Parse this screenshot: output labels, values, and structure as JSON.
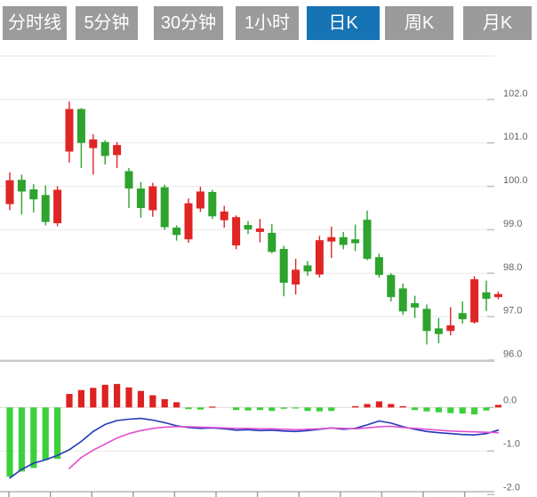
{
  "tabs": {
    "items": [
      {
        "label": "分时线",
        "active": false
      },
      {
        "label": "5分钟",
        "active": false
      },
      {
        "label": "30分钟",
        "active": false
      },
      {
        "label": "1小时",
        "active": false
      },
      {
        "label": "日K",
        "active": true
      },
      {
        "label": "周K",
        "active": false
      },
      {
        "label": "月K",
        "active": false
      }
    ],
    "active_color": "#1673b4",
    "inactive_color": "#9b9b9b",
    "text_color": "#ffffff"
  },
  "chart_data": {
    "type": "candlestick",
    "title": "",
    "legend_position": "none",
    "grid": true,
    "main_panel": {
      "ylabel": "",
      "ylim": [
        96.0,
        103.0
      ],
      "ytick_labels": [
        "102.0",
        "101.0",
        "100.0",
        "99.0",
        "98.0",
        "97.0",
        "96.0"
      ],
      "ytick_values": [
        102.0,
        101.0,
        100.0,
        99.0,
        98.0,
        97.0,
        96.0
      ],
      "up_color": "#e02525",
      "down_color": "#2ea32e",
      "ohlc_order": [
        "open",
        "high",
        "low",
        "close"
      ],
      "candles": [
        [
          99.59,
          100.32,
          99.45,
          100.14
        ],
        [
          100.15,
          100.27,
          99.35,
          99.88
        ],
        [
          99.93,
          100.05,
          99.4,
          99.7
        ],
        [
          99.8,
          100.02,
          99.1,
          99.18
        ],
        [
          99.15,
          100.0,
          99.08,
          99.92
        ],
        [
          100.8,
          101.95,
          100.55,
          101.78
        ],
        [
          101.78,
          101.8,
          100.42,
          101.0
        ],
        [
          100.88,
          101.2,
          100.27,
          101.08
        ],
        [
          101.02,
          101.06,
          100.5,
          100.7
        ],
        [
          100.72,
          101.02,
          100.42,
          100.95
        ],
        [
          100.35,
          100.42,
          99.5,
          99.95
        ],
        [
          99.95,
          100.1,
          99.28,
          99.5
        ],
        [
          99.45,
          100.08,
          99.3,
          100.0
        ],
        [
          99.98,
          100.04,
          99.0,
          99.06
        ],
        [
          99.05,
          99.1,
          98.75,
          98.88
        ],
        [
          98.78,
          99.72,
          98.7,
          99.61
        ],
        [
          99.49,
          99.99,
          99.41,
          99.88
        ],
        [
          99.87,
          99.92,
          99.25,
          99.31
        ],
        [
          99.22,
          99.55,
          99.05,
          99.42
        ],
        [
          98.64,
          99.33,
          98.55,
          99.29
        ],
        [
          99.11,
          99.2,
          98.9,
          99.01
        ],
        [
          98.95,
          99.25,
          98.71,
          99.03
        ],
        [
          98.93,
          99.13,
          98.46,
          98.49
        ],
        [
          98.56,
          98.63,
          97.47,
          97.78
        ],
        [
          97.74,
          98.33,
          97.51,
          98.08
        ],
        [
          98.18,
          98.28,
          97.94,
          98.04
        ],
        [
          97.97,
          98.86,
          97.9,
          98.76
        ],
        [
          98.73,
          99.07,
          98.35,
          98.83
        ],
        [
          98.83,
          98.95,
          98.55,
          98.65
        ],
        [
          98.78,
          99.12,
          98.51,
          98.69
        ],
        [
          99.23,
          99.44,
          98.3,
          98.33
        ],
        [
          98.37,
          98.45,
          97.9,
          97.96
        ],
        [
          97.96,
          98.0,
          97.35,
          97.45
        ],
        [
          97.65,
          97.76,
          97.04,
          97.12
        ],
        [
          97.31,
          97.48,
          96.97,
          97.21
        ],
        [
          97.18,
          97.28,
          96.36,
          96.67
        ],
        [
          96.73,
          96.97,
          96.39,
          96.6
        ],
        [
          96.67,
          97.22,
          96.57,
          96.8
        ],
        [
          97.08,
          97.35,
          96.84,
          96.94
        ],
        [
          96.87,
          97.93,
          96.84,
          97.86
        ],
        [
          97.56,
          97.83,
          97.13,
          97.41
        ],
        [
          97.45,
          97.58,
          97.4,
          97.52
        ]
      ]
    },
    "macd_panel": {
      "ylabel": "",
      "ylim": [
        -2.0,
        1.05
      ],
      "ytick_labels": [
        "0.0",
        "-1.0",
        "-2.0"
      ],
      "ytick_values": [
        0.0,
        -1.0,
        -2.0
      ],
      "hist_pos_color": "#dd2222",
      "hist_neg_color": "#3cd03c",
      "dif_color": "#2138b8",
      "dea_color": "#e251d2",
      "histogram": [
        -1.59,
        -1.47,
        -1.39,
        -1.21,
        -1.18,
        0.31,
        0.4,
        0.45,
        0.52,
        0.54,
        0.46,
        0.38,
        0.28,
        0.19,
        0.12,
        -0.04,
        -0.05,
        0.02,
        -0.01,
        -0.06,
        -0.07,
        -0.06,
        -0.08,
        -0.03,
        -0.02,
        -0.08,
        -0.09,
        -0.08,
        -0.01,
        0.03,
        0.08,
        0.14,
        0.08,
        0.03,
        -0.06,
        -0.09,
        -0.11,
        -0.13,
        -0.14,
        -0.16,
        -0.07,
        0.06
      ],
      "dif": [
        -1.62,
        -1.42,
        -1.28,
        -1.2,
        -1.1,
        -0.97,
        -0.78,
        -0.55,
        -0.39,
        -0.3,
        -0.27,
        -0.25,
        -0.29,
        -0.35,
        -0.42,
        -0.46,
        -0.48,
        -0.47,
        -0.49,
        -0.52,
        -0.51,
        -0.53,
        -0.52,
        -0.54,
        -0.55,
        -0.53,
        -0.5,
        -0.47,
        -0.5,
        -0.48,
        -0.4,
        -0.31,
        -0.36,
        -0.44,
        -0.5,
        -0.55,
        -0.58,
        -0.6,
        -0.62,
        -0.63,
        -0.6,
        -0.52
      ],
      "dea": [
        null,
        null,
        null,
        null,
        null,
        -1.4,
        -1.15,
        -0.98,
        -0.84,
        -0.7,
        -0.6,
        -0.53,
        -0.48,
        -0.45,
        -0.44,
        -0.44,
        -0.45,
        -0.46,
        -0.47,
        -0.48,
        -0.48,
        -0.49,
        -0.49,
        -0.5,
        -0.51,
        -0.5,
        -0.49,
        -0.47,
        -0.48,
        -0.49,
        -0.47,
        -0.44,
        -0.43,
        -0.46,
        -0.48,
        -0.5,
        -0.52,
        -0.54,
        -0.55,
        -0.56,
        -0.57,
        -0.58
      ]
    },
    "axis_text_color": "#666666",
    "grid_color": "#e9e9e9"
  }
}
